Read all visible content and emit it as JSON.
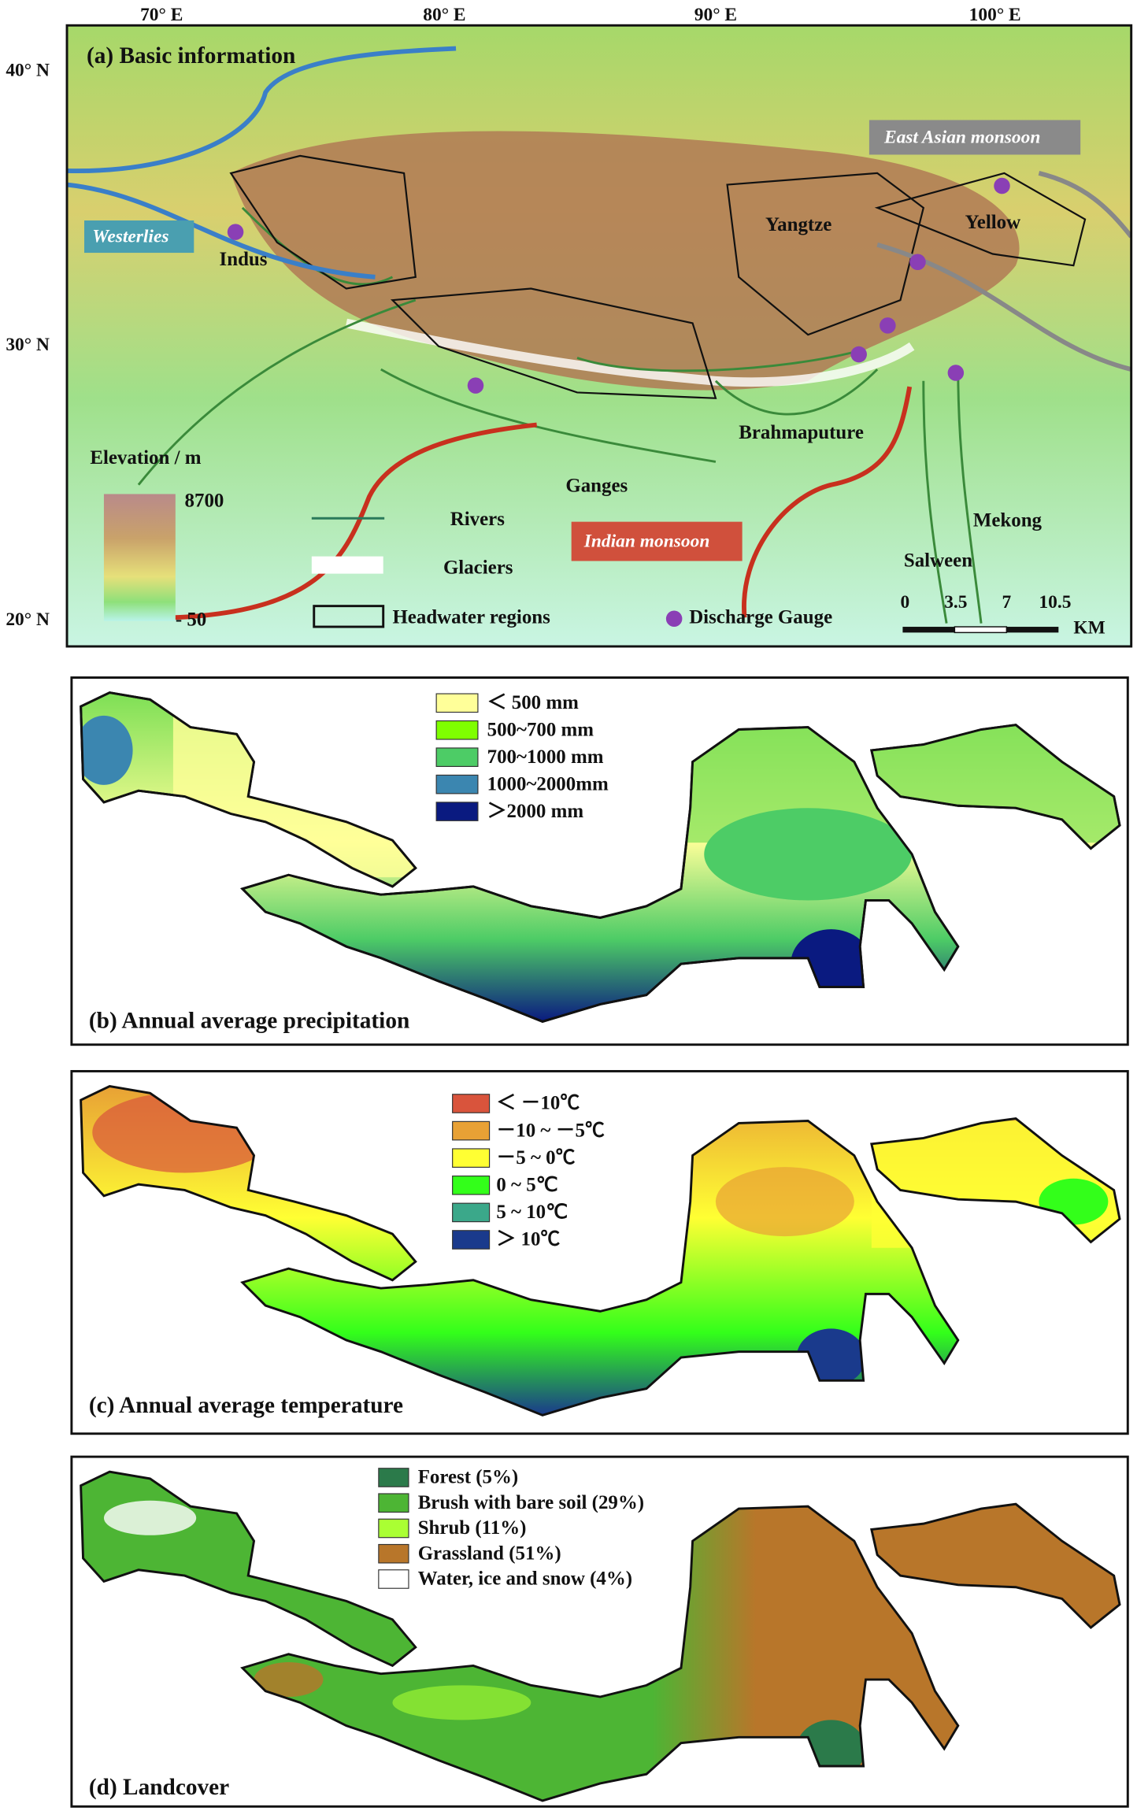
{
  "panel_a": {
    "title": "(a) Basic information",
    "lon_labels": [
      "70° E",
      "80° E",
      "90° E",
      "100° E"
    ],
    "lat_labels": [
      "40° N",
      "30° N",
      "20° N"
    ],
    "westerlies": "Westerlies",
    "east_asian_monsoon": "East Asian monsoon",
    "indian_monsoon": "Indian monsoon",
    "rivers_names": {
      "indus": "Indus",
      "yangtze": "Yangtze",
      "yellow": "Yellow",
      "brahmaputra": "Brahmaputure",
      "ganges": "Ganges",
      "mekong": "Mekong",
      "salween": "Salween"
    },
    "legend": {
      "elevation": "Elevation / m",
      "elev_max": "8700",
      "elev_min": "- 50",
      "rivers": "Rivers",
      "glaciers": "Glaciers",
      "headwater": "Headwater regions",
      "gauge": "Discharge Gauge"
    },
    "scale": [
      "0",
      "3.5",
      "7",
      "10.5"
    ],
    "scale_unit": "KM"
  },
  "panel_b": {
    "title": "(b) Annual average precipitation",
    "legend": [
      "＜ 500 mm",
      "500~700 mm",
      "700~1000 mm",
      "1000~2000mm",
      "＞2000 mm"
    ]
  },
  "panel_c": {
    "title": "(c) Annual average temperature",
    "legend": [
      "＜ －10℃",
      "－10 ~ －5℃",
      "－5 ~ 0℃",
      "0 ~ 5℃",
      "5 ~ 10℃",
      "＞ 10℃"
    ]
  },
  "panel_d": {
    "title": "(d) Landcover",
    "legend": [
      "Forest (5%)",
      "Brush with bare soil (29%)",
      "Shrub (11%)",
      "Grassland (51%)",
      "Water, ice and snow (4%)"
    ]
  }
}
